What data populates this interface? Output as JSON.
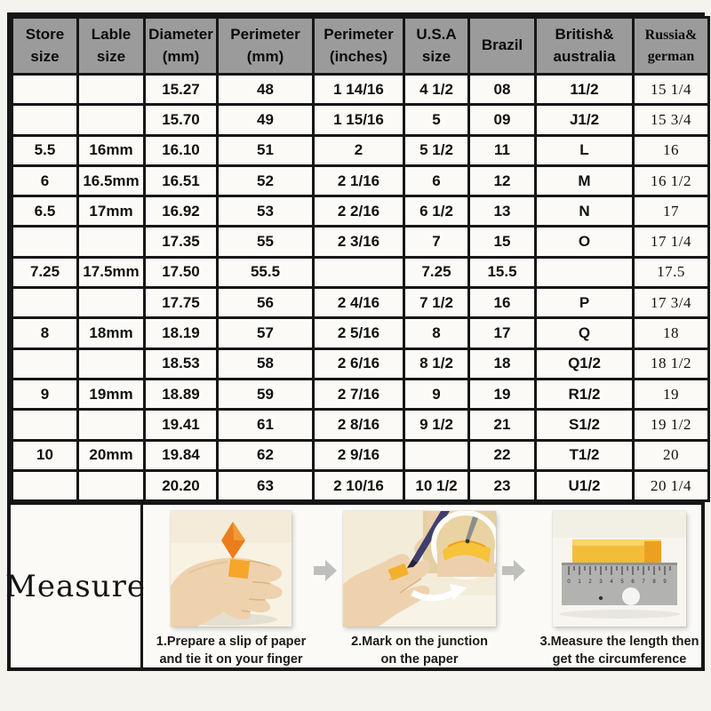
{
  "colors": {
    "page_bg": "#f5f3ee",
    "cell_bg": "#fbfaf6",
    "header_bg": "#9b9b9b",
    "border": "#161616",
    "accent_orange": "#ec8420",
    "accent_yellow": "#f5c13a",
    "skin": "#eed2ae",
    "ruler_gray": "#b2b2b0",
    "arrow_gray": "#bfbfbd"
  },
  "chart_data": {
    "type": "table",
    "title": "Ring size conversion chart",
    "columns": [
      {
        "id": "store",
        "label_lines": [
          "Store",
          "size"
        ],
        "serif": false
      },
      {
        "id": "lable",
        "label_lines": [
          "Lable",
          "size"
        ],
        "serif": false
      },
      {
        "id": "diameter",
        "label_lines": [
          "Diameter",
          "(mm)"
        ],
        "serif": false
      },
      {
        "id": "perimeter-mm",
        "label_lines": [
          "Perimeter",
          "(mm)"
        ],
        "serif": false
      },
      {
        "id": "perimeter-in",
        "label_lines": [
          "Perimeter",
          "(inches)"
        ],
        "serif": false
      },
      {
        "id": "usa",
        "label_lines": [
          "U.S.A",
          "size"
        ],
        "serif": false
      },
      {
        "id": "brazil",
        "label_lines": [
          "Brazil"
        ],
        "serif": false
      },
      {
        "id": "british",
        "label_lines": [
          "British&",
          "australia"
        ],
        "serif": false
      },
      {
        "id": "russia",
        "label_lines": [
          "Russia&",
          "german"
        ],
        "serif": true
      }
    ],
    "rows": [
      [
        "",
        "",
        "15.27",
        "48",
        "1 14/16",
        "4 1/2",
        "08",
        "11/2",
        "15 1/4"
      ],
      [
        "",
        "",
        "15.70",
        "49",
        "1 15/16",
        "5",
        "09",
        "J1/2",
        "15 3/4"
      ],
      [
        "5.5",
        "16mm",
        "16.10",
        "51",
        "2",
        "5 1/2",
        "11",
        "L",
        "16"
      ],
      [
        "6",
        "16.5mm",
        "16.51",
        "52",
        "2 1/16",
        "6",
        "12",
        "M",
        "16 1/2"
      ],
      [
        "6.5",
        "17mm",
        "16.92",
        "53",
        "2 2/16",
        "6 1/2",
        "13",
        "N",
        "17"
      ],
      [
        "",
        "",
        "17.35",
        "55",
        "2 3/16",
        "7",
        "15",
        "O",
        "17 1/4"
      ],
      [
        "7.25",
        "17.5mm",
        "17.50",
        "55.5",
        "",
        "7.25",
        "15.5",
        "",
        "17.5"
      ],
      [
        "",
        "",
        "17.75",
        "56",
        "2 4/16",
        "7 1/2",
        "16",
        "P",
        "17 3/4"
      ],
      [
        "8",
        "18mm",
        "18.19",
        "57",
        "2 5/16",
        "8",
        "17",
        "Q",
        "18"
      ],
      [
        "",
        "",
        "18.53",
        "58",
        "2 6/16",
        "8 1/2",
        "18",
        "Q1/2",
        "18 1/2"
      ],
      [
        "9",
        "19mm",
        "18.89",
        "59",
        "2 7/16",
        "9",
        "19",
        "R1/2",
        "19"
      ],
      [
        "",
        "",
        "19.41",
        "61",
        "2 8/16",
        "9 1/2",
        "21",
        "S1/2",
        "19 1/2"
      ],
      [
        "10",
        "20mm",
        "19.84",
        "62",
        "2 9/16",
        "",
        "22",
        "T1/2",
        "20"
      ],
      [
        "",
        "",
        "20.20",
        "63",
        "2 10/16",
        "10 1/2",
        "23",
        "U1/2",
        "20 1/4"
      ]
    ]
  },
  "measure": {
    "label": "Measure",
    "steps": [
      {
        "image": "hand-with-paper-slip",
        "caption_lines": [
          "1.Prepare a slip of paper",
          "and tie it on your finger"
        ]
      },
      {
        "image": "mark-junction-on-paper",
        "caption_lines": [
          "2.Mark on  the junction",
          "on the paper"
        ]
      },
      {
        "image": "ruler-measure-length",
        "caption_lines": [
          "3.Measure the length then",
          "get the circumference"
        ]
      }
    ]
  }
}
